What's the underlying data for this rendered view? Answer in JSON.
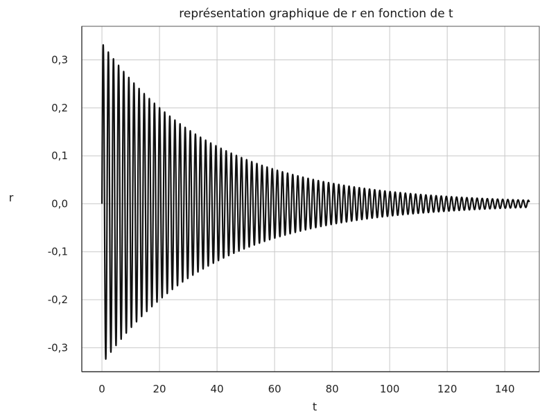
{
  "chart_data": {
    "type": "line",
    "title": "représentation graphique de r en fonction de t",
    "xlabel": "t",
    "ylabel": "r",
    "xlim": [
      -7,
      152
    ],
    "ylim": [
      -0.35,
      0.37
    ],
    "x_ticks": [
      {
        "value": 0,
        "label": "0"
      },
      {
        "value": 20,
        "label": "20"
      },
      {
        "value": 40,
        "label": "40"
      },
      {
        "value": 60,
        "label": "60"
      },
      {
        "value": 80,
        "label": "80"
      },
      {
        "value": 100,
        "label": "100"
      },
      {
        "value": 120,
        "label": "120"
      },
      {
        "value": 140,
        "label": "140"
      }
    ],
    "y_ticks": [
      {
        "value": 0.3,
        "label": "0,3"
      },
      {
        "value": 0.2,
        "label": "0,2"
      },
      {
        "value": 0.1,
        "label": "0,1"
      },
      {
        "value": 0.0,
        "label": "0,0"
      },
      {
        "value": -0.1,
        "label": "-0,1"
      },
      {
        "value": -0.2,
        "label": "-0,2"
      },
      {
        "value": -0.3,
        "label": "-0,3"
      }
    ],
    "grid": true,
    "series": [
      {
        "color": "#111111",
        "model": "damped_sine",
        "t_start": 0,
        "t_end": 148.5,
        "amplitude": 0.335,
        "decay_rate": 0.0257,
        "period": 1.78,
        "x_peaks": [
          0.4,
          1.3,
          2.2,
          3.1,
          4.0,
          20,
          40,
          60,
          80,
          100,
          120,
          140
        ],
        "y_peaks": [
          0.33,
          -0.32,
          0.31,
          -0.3,
          0.29,
          0.2,
          0.12,
          0.07,
          0.04,
          0.025,
          0.014,
          0.008
        ]
      }
    ]
  }
}
